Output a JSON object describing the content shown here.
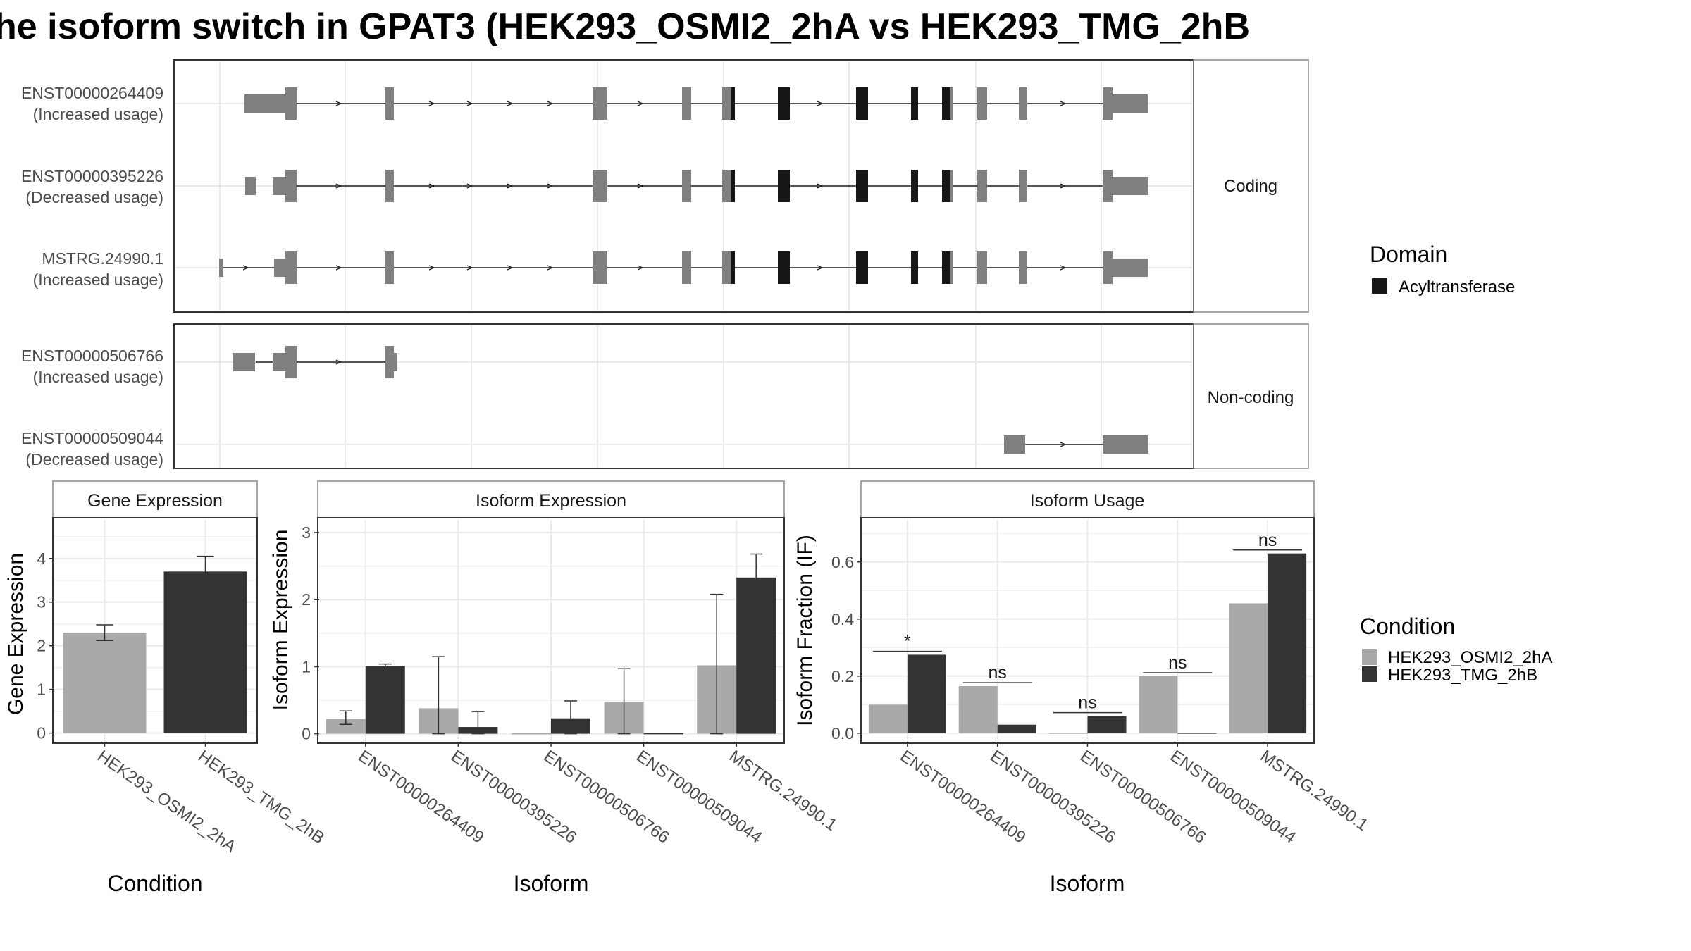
{
  "title": "he isoform switch in GPAT3 (HEK293_OSMI2_2hA vs HEK293_TMG_2hB",
  "colors": {
    "cond1": "#a9a9a9",
    "cond2": "#333333",
    "domain": "#161616",
    "exon": "#808080",
    "panel_border": "#333333"
  },
  "legend_domain": {
    "title": "Domain",
    "items": [
      {
        "label": "Acyltransferase",
        "color": "#161616"
      }
    ]
  },
  "legend_condition": {
    "title": "Condition",
    "items": [
      {
        "label": "HEK293_OSMI2_2hA",
        "color": "#a9a9a9"
      },
      {
        "label": "HEK293_TMG_2hB",
        "color": "#333333"
      }
    ]
  },
  "chart_data": [
    {
      "type": "gene_structure",
      "facets": [
        "Coding",
        "Non-coding"
      ],
      "isoforms": [
        {
          "id": "ENST00000264409",
          "label": "(Increased usage)",
          "group": "Coding"
        },
        {
          "id": "ENST00000395226",
          "label": "(Decreased usage)",
          "group": "Coding"
        },
        {
          "id": "MSTRG.24990.1",
          "label": "(Increased usage)",
          "group": "Coding"
        },
        {
          "id": "ENST00000506766",
          "label": "(Increased usage)",
          "group": "Non-coding"
        },
        {
          "id": "ENST00000509044",
          "label": "(Decreased usage)",
          "group": "Non-coding"
        }
      ]
    },
    {
      "type": "bar",
      "title": "Gene Expression",
      "xlabel": "Condition",
      "ylabel": "Gene Expression",
      "categories": [
        "HEK293_OSMI2_2hA",
        "HEK293_TMG_2hB"
      ],
      "values": [
        2.3,
        3.7
      ],
      "errors": [
        [
          2.12,
          2.48
        ],
        [
          3.35,
          4.05
        ]
      ],
      "ylim": [
        -0.2,
        4.9
      ],
      "yticks": [
        0,
        1,
        2,
        3,
        4
      ]
    },
    {
      "type": "bar",
      "title": "Isoform Expression",
      "xlabel": "Isoform",
      "ylabel": "Isoform Expression",
      "categories": [
        "ENST00000264409",
        "ENST00000395226",
        "ENST00000506766",
        "ENST00000509044",
        "MSTRG.24990.1"
      ],
      "series": [
        {
          "name": "HEK293_OSMI2_2hA",
          "values": [
            0.22,
            0.38,
            0.0,
            0.48,
            1.02
          ],
          "errors": [
            [
              0.14,
              0.34
            ],
            [
              0.0,
              1.15
            ],
            null,
            [
              0.0,
              0.97
            ],
            [
              0.0,
              2.08
            ]
          ]
        },
        {
          "name": "HEK293_TMG_2hB",
          "values": [
            1.01,
            0.1,
            0.23,
            0.0,
            2.33
          ],
          "errors": [
            [
              0.98,
              1.04
            ],
            [
              0.0,
              0.33
            ],
            [
              0.0,
              0.49
            ],
            null,
            [
              1.98,
              2.68
            ]
          ]
        }
      ],
      "ylim": [
        -0.12,
        3.2
      ],
      "yticks": [
        0,
        1,
        2,
        3
      ]
    },
    {
      "type": "bar",
      "title": "Isoform Usage",
      "xlabel": "Isoform",
      "ylabel": "Isoform Fraction (IF)",
      "categories": [
        "ENST00000264409",
        "ENST00000395226",
        "ENST00000506766",
        "ENST00000509044",
        "MSTRG.24990.1"
      ],
      "series": [
        {
          "name": "HEK293_OSMI2_2hA",
          "values": [
            0.1,
            0.165,
            0.0,
            0.2,
            0.455
          ]
        },
        {
          "name": "HEK293_TMG_2hB",
          "values": [
            0.275,
            0.03,
            0.06,
            0.0,
            0.63
          ]
        }
      ],
      "significance": [
        "*",
        "ns",
        "ns",
        "ns",
        "ns"
      ],
      "ylim": [
        -0.03,
        0.75
      ],
      "yticks": [
        0.0,
        0.2,
        0.4,
        0.6
      ],
      "ytick_labels": [
        "0.0",
        "0.2",
        "0.4",
        "0.6"
      ]
    }
  ],
  "facet_labels": {
    "coding": "Coding",
    "noncoding": "Non-coding"
  }
}
